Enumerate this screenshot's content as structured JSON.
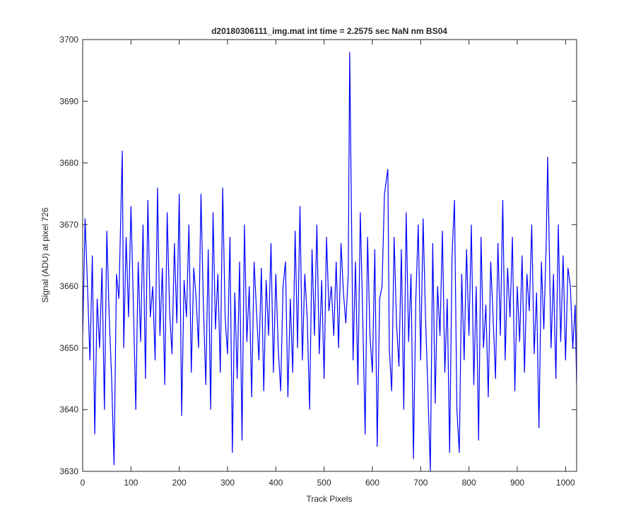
{
  "chart_data": {
    "type": "line",
    "title": "d20180306111_img.mat int time = 2.2575 sec  NaN nm BS04",
    "xlabel": "Track Pixels",
    "ylabel": "Signal (ADU) at pixel 726",
    "color": "#0000ff",
    "xlim": [
      0,
      1023
    ],
    "xticks": [
      0,
      100,
      200,
      300,
      400,
      500,
      600,
      700,
      800,
      900,
      1000
    ],
    "ylim": [
      3630,
      3700
    ],
    "yticks": [
      3630,
      3640,
      3650,
      3660,
      3670,
      3680,
      3690,
      3700
    ],
    "x": [
      0,
      5,
      10,
      15,
      20,
      25,
      30,
      35,
      40,
      45,
      50,
      55,
      60,
      65,
      70,
      75,
      82,
      85,
      90,
      95,
      100,
      105,
      110,
      115,
      120,
      125,
      130,
      135,
      140,
      145,
      150,
      155,
      160,
      165,
      170,
      175,
      180,
      185,
      190,
      195,
      200,
      205,
      210,
      215,
      220,
      225,
      230,
      235,
      240,
      245,
      250,
      255,
      260,
      265,
      270,
      275,
      280,
      285,
      290,
      295,
      300,
      305,
      310,
      315,
      320,
      325,
      330,
      335,
      340,
      345,
      350,
      355,
      360,
      365,
      370,
      375,
      380,
      385,
      390,
      395,
      400,
      405,
      410,
      415,
      420,
      425,
      430,
      435,
      440,
      445,
      450,
      455,
      460,
      465,
      470,
      475,
      480,
      485,
      490,
      495,
      500,
      505,
      510,
      515,
      520,
      525,
      530,
      535,
      540,
      545,
      550,
      553,
      560,
      565,
      570,
      575,
      580,
      585,
      590,
      595,
      600,
      605,
      610,
      615,
      620,
      625,
      632,
      635,
      640,
      645,
      650,
      655,
      660,
      665,
      670,
      675,
      680,
      685,
      690,
      695,
      700,
      705,
      710,
      715,
      720,
      725,
      730,
      735,
      740,
      745,
      750,
      755,
      760,
      765,
      770,
      775,
      780,
      785,
      790,
      795,
      800,
      805,
      810,
      815,
      820,
      825,
      830,
      835,
      840,
      845,
      850,
      855,
      860,
      865,
      870,
      875,
      880,
      885,
      890,
      895,
      900,
      905,
      910,
      915,
      920,
      925,
      930,
      935,
      940,
      945,
      950,
      955,
      960,
      963,
      970,
      975,
      980,
      985,
      990,
      995,
      1000,
      1005,
      1010,
      1015,
      1020,
      1023
    ],
    "values": [
      3652,
      3671,
      3660,
      3648,
      3665,
      3636,
      3658,
      3650,
      3663,
      3640,
      3669,
      3655,
      3645,
      3631,
      3662,
      3658,
      3682,
      3650,
      3668,
      3655,
      3673,
      3657,
      3640,
      3664,
      3651,
      3670,
      3645,
      3674,
      3655,
      3660,
      3648,
      3676,
      3652,
      3663,
      3644,
      3672,
      3656,
      3649,
      3667,
      3654,
      3675,
      3639,
      3661,
      3655,
      3670,
      3646,
      3663,
      3658,
      3650,
      3675,
      3657,
      3644,
      3666,
      3640,
      3672,
      3653,
      3662,
      3646,
      3676,
      3655,
      3649,
      3668,
      3633,
      3659,
      3645,
      3664,
      3635,
      3670,
      3651,
      3660,
      3642,
      3664,
      3656,
      3648,
      3663,
      3643,
      3661,
      3652,
      3667,
      3646,
      3662,
      3650,
      3643,
      3660,
      3664,
      3642,
      3658,
      3646,
      3669,
      3650,
      3673,
      3648,
      3662,
      3655,
      3640,
      3666,
      3652,
      3670,
      3649,
      3661,
      3645,
      3668,
      3656,
      3660,
      3652,
      3664,
      3650,
      3667,
      3659,
      3654,
      3662,
      3698,
      3648,
      3664,
      3644,
      3672,
      3655,
      3636,
      3668,
      3652,
      3646,
      3666,
      3634,
      3658,
      3660,
      3675,
      3679,
      3650,
      3643,
      3668,
      3654,
      3647,
      3666,
      3640,
      3672,
      3651,
      3662,
      3632,
      3658,
      3670,
      3648,
      3671,
      3655,
      3643,
      3630,
      3667,
      3641,
      3660,
      3652,
      3669,
      3646,
      3658,
      3633,
      3665,
      3674,
      3640,
      3633,
      3662,
      3648,
      3666,
      3652,
      3670,
      3644,
      3660,
      3635,
      3668,
      3650,
      3657,
      3642,
      3664,
      3655,
      3645,
      3667,
      3652,
      3674,
      3648,
      3663,
      3655,
      3668,
      3643,
      3660,
      3651,
      3665,
      3646,
      3662,
      3656,
      3670,
      3649,
      3659,
      3637,
      3664,
      3653,
      3667,
      3681,
      3650,
      3662,
      3645,
      3670,
      3651,
      3665,
      3648,
      3663,
      3660,
      3650,
      3657,
      3644
    ]
  }
}
